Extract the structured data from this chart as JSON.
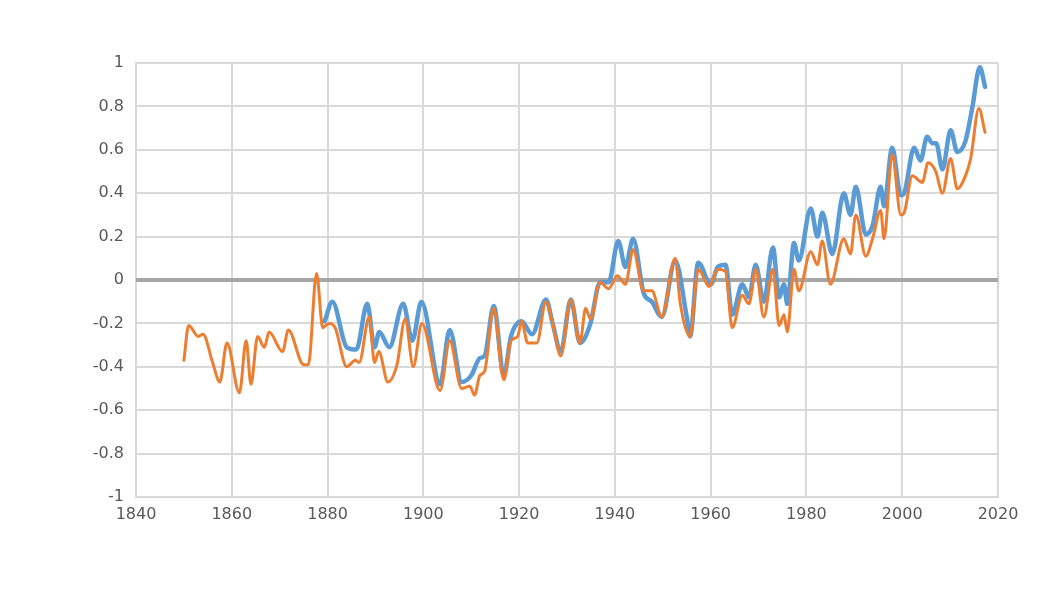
{
  "chart_data": {
    "type": "line",
    "xlim": [
      1840,
      2020
    ],
    "xticks": [
      1840,
      1860,
      1880,
      1900,
      1920,
      1940,
      1960,
      1980,
      2000,
      2020
    ],
    "ylim": [
      -1,
      1
    ],
    "yticks": [
      -1,
      -0.8,
      -0.6,
      -0.4,
      -0.2,
      0,
      0.2,
      0.4,
      0.6,
      0.8,
      1
    ],
    "grid": true,
    "marker": "none",
    "line_style": "solid",
    "ref_lines": [
      {
        "axis": "y",
        "value": 0,
        "color": "#a6a6a6"
      }
    ],
    "series": [
      {
        "color": "#5b9bd5",
        "x": [
          1879.4,
          1881,
          1884,
          1886,
          1888.3,
          1889.8,
          1890.8,
          1892.9,
          1895.8,
          1897.7,
          1899.6,
          1903.5,
          1905.5,
          1908,
          1910,
          1911.8,
          1912.8,
          1914.7,
          1916.8,
          1918.3,
          1920.5,
          1922.7,
          1925.6,
          1927,
          1928.7,
          1930.8,
          1932.7,
          1934.9,
          1936.9,
          1938.7,
          1940.7,
          1942.2,
          1943.8,
          1946,
          1947.7,
          1949.8,
          1952.6,
          1955,
          1955.7,
          1957.4,
          1960,
          1961.5,
          1963.1,
          1964.5,
          1966.6,
          1968,
          1969.4,
          1971.1,
          1973,
          1974.3,
          1975.3,
          1976,
          1977.4,
          1978.4,
          1980.9,
          1982.3,
          1983.3,
          1985.4,
          1987.8,
          1989.2,
          1990.3,
          1992.4,
          1993.8,
          1995.5,
          1996.2,
          1997.9,
          1999.7,
          2000.4,
          2002.5,
          2003.8,
          2005.2,
          2006.3,
          2007.1,
          2008.4,
          2010.1,
          2011.5,
          2013.2,
          2014.6,
          2016.2,
          2017.3
        ],
        "values": [
          -0.19,
          -0.1,
          -0.31,
          -0.32,
          -0.11,
          -0.31,
          -0.24,
          -0.31,
          -0.11,
          -0.28,
          -0.1,
          -0.48,
          -0.23,
          -0.47,
          -0.44,
          -0.36,
          -0.35,
          -0.12,
          -0.44,
          -0.26,
          -0.19,
          -0.25,
          -0.09,
          -0.2,
          -0.33,
          -0.09,
          -0.29,
          -0.2,
          -0.01,
          -0.01,
          0.18,
          0.06,
          0.19,
          -0.06,
          -0.1,
          -0.17,
          0.09,
          -0.17,
          -0.26,
          0.08,
          -0.02,
          0.06,
          0.07,
          -0.16,
          -0.02,
          -0.08,
          0.07,
          -0.1,
          0.15,
          -0.08,
          -0.02,
          -0.11,
          0.17,
          0.09,
          0.33,
          0.2,
          0.31,
          0.12,
          0.4,
          0.3,
          0.43,
          0.21,
          0.25,
          0.43,
          0.34,
          0.61,
          0.39,
          0.4,
          0.61,
          0.55,
          0.66,
          0.63,
          0.63,
          0.51,
          0.69,
          0.59,
          0.64,
          0.79,
          0.98,
          0.89
        ]
      },
      {
        "color": "#ed7d31",
        "x": [
          1850,
          1851,
          1853,
          1854,
          1856,
          1857.5,
          1859,
          1861.6,
          1863,
          1864,
          1865.4,
          1866.8,
          1867.8,
          1870.6,
          1871.8,
          1875,
          1876,
          1877.7,
          1879,
          1880.3,
          1881.6,
          1884,
          1885.8,
          1886.6,
          1888.7,
          1889.8,
          1890.7,
          1892.6,
          1894.5,
          1896.2,
          1897.9,
          1899.7,
          1903.5,
          1905.5,
          1908,
          1909.7,
          1910.7,
          1911.8,
          1912.8,
          1914.7,
          1916.8,
          1918.3,
          1919.7,
          1920.5,
          1921.8,
          1923.7,
          1925.6,
          1927,
          1928.7,
          1930.8,
          1932.7,
          1933.9,
          1934.9,
          1936.9,
          1938.7,
          1940.5,
          1942.2,
          1943.8,
          1946,
          1947.7,
          1949.8,
          1952.6,
          1953.6,
          1955.7,
          1957.4,
          1959.7,
          1961.5,
          1963.1,
          1964.5,
          1966.6,
          1968,
          1969.4,
          1971.1,
          1973,
          1974.3,
          1975.3,
          1976,
          1977.4,
          1978.4,
          1980.9,
          1982.3,
          1983.3,
          1985,
          1987.8,
          1989.2,
          1990.3,
          1992.4,
          1993.8,
          1995.5,
          1996.2,
          1997.9,
          1999.7,
          2000.4,
          2002.1,
          2004.2,
          2005.4,
          2007,
          2008.4,
          2010.1,
          2011.5,
          2013.2,
          2014.3,
          2016,
          2017.3
        ],
        "values": [
          -0.37,
          -0.21,
          -0.26,
          -0.25,
          -0.38,
          -0.47,
          -0.29,
          -0.52,
          -0.28,
          -0.48,
          -0.26,
          -0.31,
          -0.24,
          -0.33,
          -0.23,
          -0.39,
          -0.39,
          0.03,
          -0.22,
          -0.2,
          -0.22,
          -0.4,
          -0.37,
          -0.38,
          -0.17,
          -0.38,
          -0.33,
          -0.47,
          -0.39,
          -0.18,
          -0.4,
          -0.2,
          -0.51,
          -0.28,
          -0.5,
          -0.49,
          -0.53,
          -0.44,
          -0.42,
          -0.13,
          -0.46,
          -0.28,
          -0.26,
          -0.19,
          -0.29,
          -0.29,
          -0.1,
          -0.2,
          -0.35,
          -0.09,
          -0.29,
          -0.13,
          -0.18,
          -0.01,
          -0.04,
          0.02,
          -0.02,
          0.14,
          -0.05,
          -0.05,
          -0.17,
          0.1,
          -0.1,
          -0.26,
          0.05,
          -0.03,
          0.05,
          0.04,
          -0.22,
          -0.07,
          -0.11,
          0.05,
          -0.17,
          0.05,
          -0.21,
          -0.16,
          -0.24,
          0.05,
          -0.05,
          0.13,
          0.07,
          0.18,
          -0.02,
          0.19,
          0.12,
          0.3,
          0.11,
          0.19,
          0.32,
          0.19,
          0.58,
          0.3,
          0.31,
          0.48,
          0.45,
          0.54,
          0.5,
          0.4,
          0.56,
          0.42,
          0.48,
          0.56,
          0.79,
          0.68
        ]
      }
    ]
  }
}
